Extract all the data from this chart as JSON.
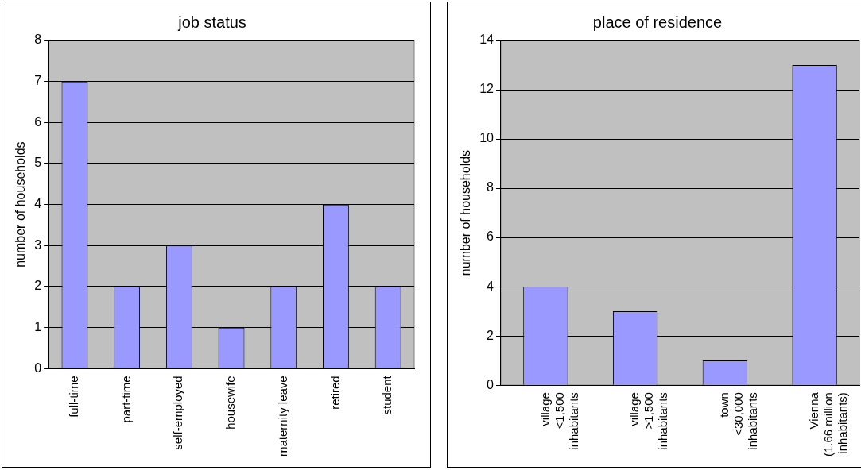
{
  "chart_data": [
    {
      "type": "bar",
      "title": "job status",
      "ylabel": "number of households",
      "categories": [
        "full-time",
        "part-time",
        "self-employed",
        "housewife",
        "maternity leave",
        "retired",
        "student"
      ],
      "values": [
        7,
        2,
        3,
        1,
        2,
        4,
        2
      ],
      "color": "#9999ff",
      "ylim": [
        0,
        8
      ],
      "yticks": [
        0,
        1,
        2,
        3,
        4,
        5,
        6,
        7,
        8
      ],
      "grid": "y",
      "legend": false
    },
    {
      "type": "bar",
      "title": "place of residence",
      "ylabel": "number of households",
      "categories": [
        "village\n<1,500\ninhabitants",
        "village\n>1,500\ninhabitants",
        "town\n<30,000\ninhabitants",
        "Vienna\n(1.66 million\ninhabitants)"
      ],
      "values": [
        4,
        3,
        1,
        13
      ],
      "color": "#9999ff",
      "ylim": [
        0,
        14
      ],
      "yticks": [
        0,
        2,
        4,
        6,
        8,
        10,
        12,
        14
      ],
      "grid": "y",
      "legend": false
    }
  ]
}
